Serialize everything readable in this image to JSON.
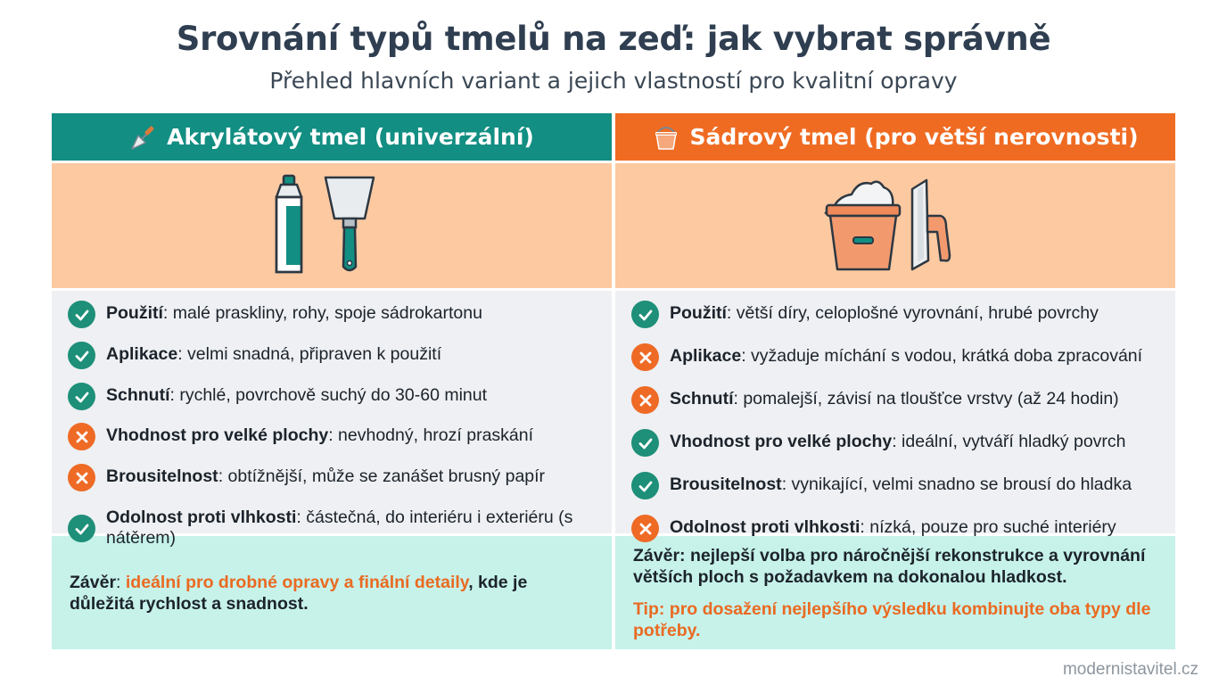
{
  "title": "Srovnání typů tmelů na zeď: jak vybrat správně",
  "subtitle": "Přehled hlavních variant a jejich vlastností pro kvalitní opravy",
  "left": {
    "header": "Akrylátový tmel (univerzální)",
    "header_icon": "trowel-icon",
    "illustration": [
      "tube-icon",
      "putty-knife-icon"
    ],
    "properties": [
      {
        "label": "Použití",
        "text": ": malé praskliny, rohy, spoje sádrokartonu",
        "status": "ok"
      },
      {
        "label": "Aplikace",
        "text": ": velmi snadná, připraven k použití",
        "status": "ok"
      },
      {
        "label": "Schnutí",
        "text": ": rychlé, povrchově suchý do 30-60 minut",
        "status": "ok"
      },
      {
        "label": "Vhodnost pro velké plochy",
        "text": ": nevhodný, hrozí praskání",
        "status": "no"
      },
      {
        "label": "Brousitelnost",
        "text": ": obtížnější, může se zanášet brusný papír",
        "status": "no"
      },
      {
        "label": "Odolnost proti vlhkosti",
        "text": ": částečná, do interiéru i exteriéru (s nátěrem)",
        "status": "ok"
      }
    ],
    "conclusion": {
      "label": "Závěr",
      "colon": ": ",
      "highlight": "ideální pro drobné opravy a finální detaily",
      "rest": ", kde je důležitá rychlost a snadnost."
    }
  },
  "right": {
    "header": "Sádrový tmel (pro větší nerovnosti)",
    "header_icon": "bucket-icon",
    "illustration": [
      "bucket-icon",
      "trowel-icon"
    ],
    "properties": [
      {
        "label": "Použití",
        "text": ": větší díry, celoplošné vyrovnání, hrubé povrchy",
        "status": "ok"
      },
      {
        "label": "Aplikace",
        "text": ": vyžaduje míchání s vodou, krátká doba zpracování",
        "status": "no"
      },
      {
        "label": "Schnutí",
        "text": ": pomalejší, závisí na tloušťce vrstvy (až 24 hodin)",
        "status": "no"
      },
      {
        "label": "Vhodnost pro velké plochy",
        "text": ": ideální, vytváří hladký povrch",
        "status": "ok"
      },
      {
        "label": "Brousitelnost",
        "text": ": vynikající, velmi snadno se brousí do hladka",
        "status": "ok"
      },
      {
        "label": "Odolnost proti vlhkosti",
        "text": ": nízká, pouze pro suché interiéry",
        "status": "no"
      }
    ],
    "conclusion": "Závěr: nejlepší volba pro náročnější rekonstrukce a vyrovnání větších ploch s požadavkem na dokonalou hladkost.",
    "tip": "Tip: pro dosažení nejlepšího výsledku kombinujte oba typy dle potřeby."
  },
  "footer": "modernistavitel.cz",
  "colors": {
    "teal": "#128e82",
    "orange": "#ef6b22",
    "peach": "#fdc9a1",
    "mint": "#c6f2ea",
    "check": "#1e8f78"
  }
}
